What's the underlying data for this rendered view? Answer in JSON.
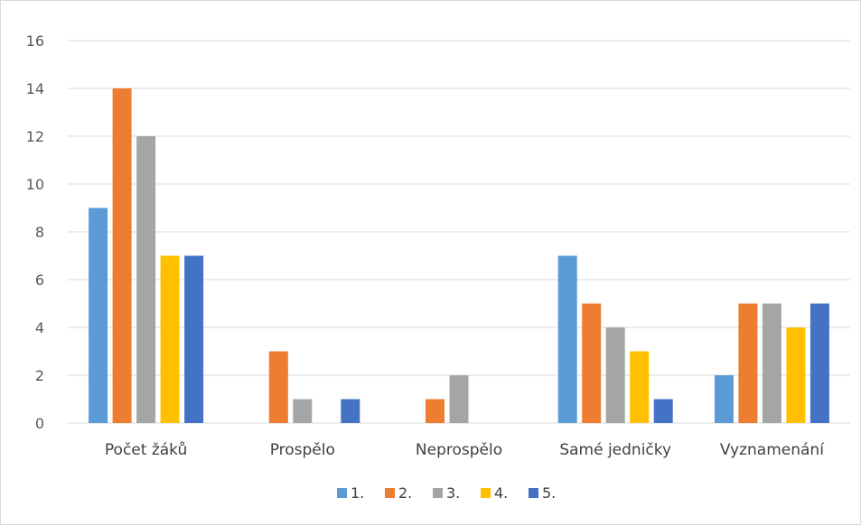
{
  "chart_data": {
    "type": "bar",
    "title": "",
    "xlabel": "",
    "ylabel": "",
    "ylim": [
      0,
      16
    ],
    "yticks": [
      "0",
      "2",
      "4",
      "6",
      "8",
      "10",
      "12",
      "14",
      "16"
    ],
    "grid": true,
    "legend_position": "bottom",
    "categories": [
      "Počet žáků",
      "Prospělo",
      "Neprospělo",
      "Samé jedničky",
      "Vyznamenání"
    ],
    "series": [
      {
        "name": "1.",
        "color": "#5b9bd5",
        "values": [
          9,
          0,
          0,
          7,
          2
        ]
      },
      {
        "name": "2.",
        "color": "#ed7d31",
        "values": [
          14,
          3,
          1,
          5,
          5
        ]
      },
      {
        "name": "3.",
        "color": "#a5a5a5",
        "values": [
          12,
          1,
          2,
          4,
          5
        ]
      },
      {
        "name": "4.",
        "color": "#ffc000",
        "values": [
          7,
          0,
          0,
          3,
          4
        ]
      },
      {
        "name": "5.",
        "color": "#4472c4",
        "values": [
          7,
          1,
          0,
          1,
          5
        ]
      }
    ]
  }
}
